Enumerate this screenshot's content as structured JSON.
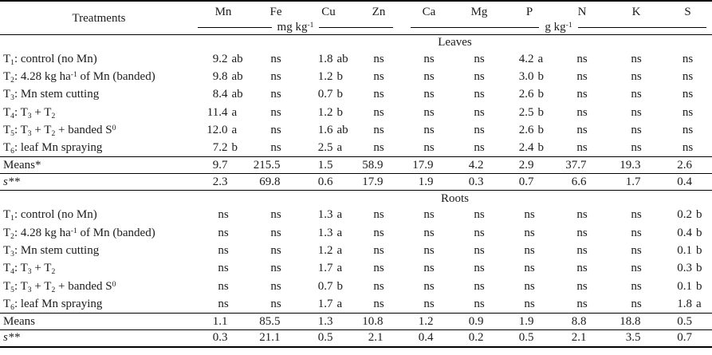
{
  "table": {
    "headers": {
      "treatments": "Treatments",
      "elements": [
        "Mn",
        "Fe",
        "Cu",
        "Zn",
        "Ca",
        "Mg",
        "P",
        "N",
        "K",
        "S"
      ],
      "unit_mg": "mg kg^-1^",
      "unit_g": "g kg^-1^"
    },
    "sections": [
      {
        "label": "Leaves",
        "rows": [
          {
            "treatment": "T~1~: control (no Mn)",
            "values": [
              "9.2 ab",
              "ns",
              "1.8 ab",
              "ns",
              "ns",
              "ns",
              "4.2 a",
              "ns",
              "ns",
              "ns"
            ]
          },
          {
            "treatment": "T~2~: 4.28 kg ha^-1^ of Mn (banded)",
            "values": [
              "9.8 ab",
              "ns",
              "1.2 b",
              "ns",
              "ns",
              "ns",
              "3.0 b",
              "ns",
              "ns",
              "ns"
            ]
          },
          {
            "treatment": "T~3~: Mn stem cutting",
            "values": [
              "8.4 ab",
              "ns",
              "0.7 b",
              "ns",
              "ns",
              "ns",
              "2.6 b",
              "ns",
              "ns",
              "ns"
            ]
          },
          {
            "treatment": "T~4~: T~3~ + T~2~",
            "values": [
              "11.4 a",
              "ns",
              "1.2 b",
              "ns",
              "ns",
              "ns",
              "2.5 b",
              "ns",
              "ns",
              "ns"
            ]
          },
          {
            "treatment": "T~5~: T~3~ + T~2~ + banded S^0^",
            "values": [
              "12.0 a",
              "ns",
              "1.6 ab",
              "ns",
              "ns",
              "ns",
              "2.6 b",
              "ns",
              "ns",
              "ns"
            ]
          },
          {
            "treatment": "T~6~: leaf Mn spraying",
            "values": [
              "7.2 b",
              "ns",
              "2.5 a",
              "ns",
              "ns",
              "ns",
              "2.4 b",
              "ns",
              "ns",
              "ns"
            ]
          }
        ],
        "means_label": "Means*",
        "means": [
          "9.7",
          "215.5",
          "1.5",
          "58.9",
          "17.9",
          "4.2",
          "2.9",
          "37.7",
          "19.3",
          "2.6"
        ],
        "s_label": "s**",
        "s_values": [
          "2.3",
          "69.8",
          "0.6",
          "17.9",
          "1.9",
          "0.3",
          "0.7",
          "6.6",
          "1.7",
          "0.4"
        ]
      },
      {
        "label": "Roots",
        "rows": [
          {
            "treatment": "T~1~: control (no Mn)",
            "values": [
              "ns",
              "ns",
              "1.3 a",
              "ns",
              "ns",
              "ns",
              "ns",
              "ns",
              "ns",
              "0.2 b"
            ]
          },
          {
            "treatment": "T~2~: 4.28 kg ha^-1^ of Mn (banded)",
            "values": [
              "ns",
              "ns",
              "1.3 a",
              "ns",
              "ns",
              "ns",
              "ns",
              "ns",
              "ns",
              "0.4 b"
            ]
          },
          {
            "treatment": "T~3~: Mn stem cutting",
            "values": [
              "ns",
              "ns",
              "1.2 a",
              "ns",
              "ns",
              "ns",
              "ns",
              "ns",
              "ns",
              "0.1 b"
            ]
          },
          {
            "treatment": "T~4~: T~3~ + T~2~",
            "values": [
              "ns",
              "ns",
              "1.7 a",
              "ns",
              "ns",
              "ns",
              "ns",
              "ns",
              "ns",
              "0.3 b"
            ]
          },
          {
            "treatment": "T~5~: T~3~ + T~2~ + banded S^0^",
            "values": [
              "ns",
              "ns",
              "0.7 b",
              "ns",
              "ns",
              "ns",
              "ns",
              "ns",
              "ns",
              "0.1 b"
            ]
          },
          {
            "treatment": "T~6~: leaf Mn spraying",
            "values": [
              "ns",
              "ns",
              "1.7 a",
              "ns",
              "ns",
              "ns",
              "ns",
              "ns",
              "ns",
              "1.8 a"
            ]
          }
        ],
        "means_label": "Means",
        "means": [
          "1.1",
          "85.5",
          "1.3",
          "10.8",
          "1.2",
          "0.9",
          "1.9",
          "8.8",
          "18.8",
          "0.5"
        ],
        "s_label": "s**",
        "s_values": [
          "0.3",
          "21.1",
          "0.5",
          "2.1",
          "0.4",
          "0.2",
          "0.5",
          "2.1",
          "3.5",
          "0.7"
        ]
      }
    ]
  }
}
